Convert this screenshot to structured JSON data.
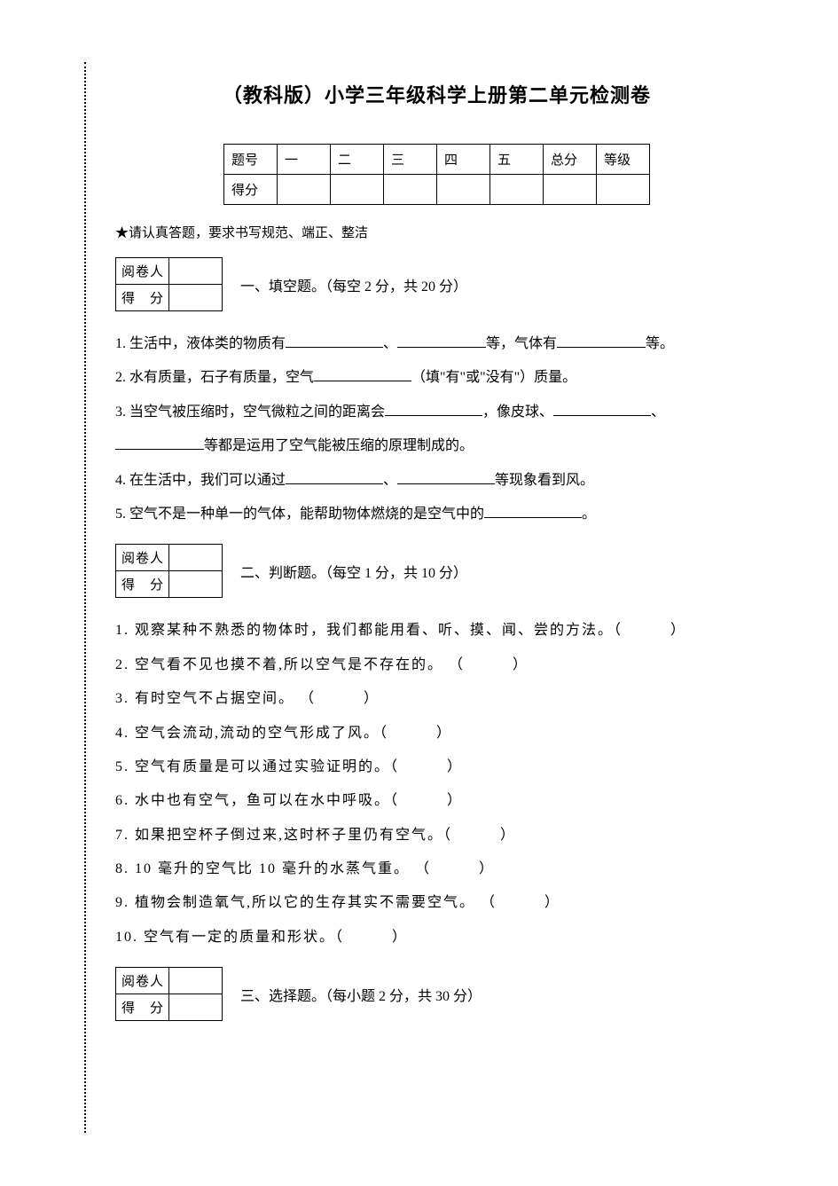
{
  "title": "（教科版）小学三年级科学上册第二单元检测卷",
  "scoreTable": {
    "row1": [
      "题号",
      "一",
      "二",
      "三",
      "四",
      "五",
      "总分",
      "等级"
    ],
    "row2Label": "得分"
  },
  "instruction": "★请认真答题，要求书写规范、端正、整洁",
  "grader": {
    "reviewer": "阅卷人",
    "score": "得　分"
  },
  "sections": {
    "s1": {
      "title": "一、填空题。（每空 2 分，共 20 分）"
    },
    "s2": {
      "title": "二、判断题。（每空 1 分，共 10 分）"
    },
    "s3": {
      "title": "三、选择题。（每小题 2 分，共 30 分）"
    }
  },
  "fill": {
    "q1a": "1. 生活中，液体类的物质有",
    "q1b": "、",
    "q1c": "等，气体有",
    "q1d": "等。",
    "q2a": "2. 水有质量，石子有质量，空气",
    "q2b": "（填\"有\"或\"没有\"）质量。",
    "q3a": "3. 当空气被压缩时，空气微粒之间的距离会",
    "q3b": "，像皮球、",
    "q3c": "、",
    "q3d": "等都是运用了空气能被压缩的原理制成的。",
    "q4a": "4. 在生活中，我们可以通过",
    "q4b": "、",
    "q4c": "等现象看到风。",
    "q5a": "5. 空气不是一种单一的气体，能帮助物体燃烧的是空气中的",
    "q5b": "。"
  },
  "judge": {
    "q1": "1. 观察某种不熟悉的物体时，我们都能用看、听、摸、闻、尝的方法。（　　　）",
    "q2": "2. 空气看不见也摸不着,所以空气是不存在的。 （　　　）",
    "q3": "3. 有时空气不占据空间。 （　　　）",
    "q4": "4. 空气会流动,流动的空气形成了风。（　　　）",
    "q5": "5. 空气有质量是可以通过实验证明的。（　　　）",
    "q6": "6. 水中也有空气，鱼可以在水中呼吸。（　　　）",
    "q7": "7. 如果把空杯子倒过来,这时杯子里仍有空气。（　　　）",
    "q8": "8. 10 毫升的空气比 10 毫升的水蒸气重。 （　　　）",
    "q9": "9. 植物会制造氧气,所以它的生存其实不需要空气。 （　　　）",
    "q10": "10. 空气有一定的质量和形状。（　　　）"
  }
}
